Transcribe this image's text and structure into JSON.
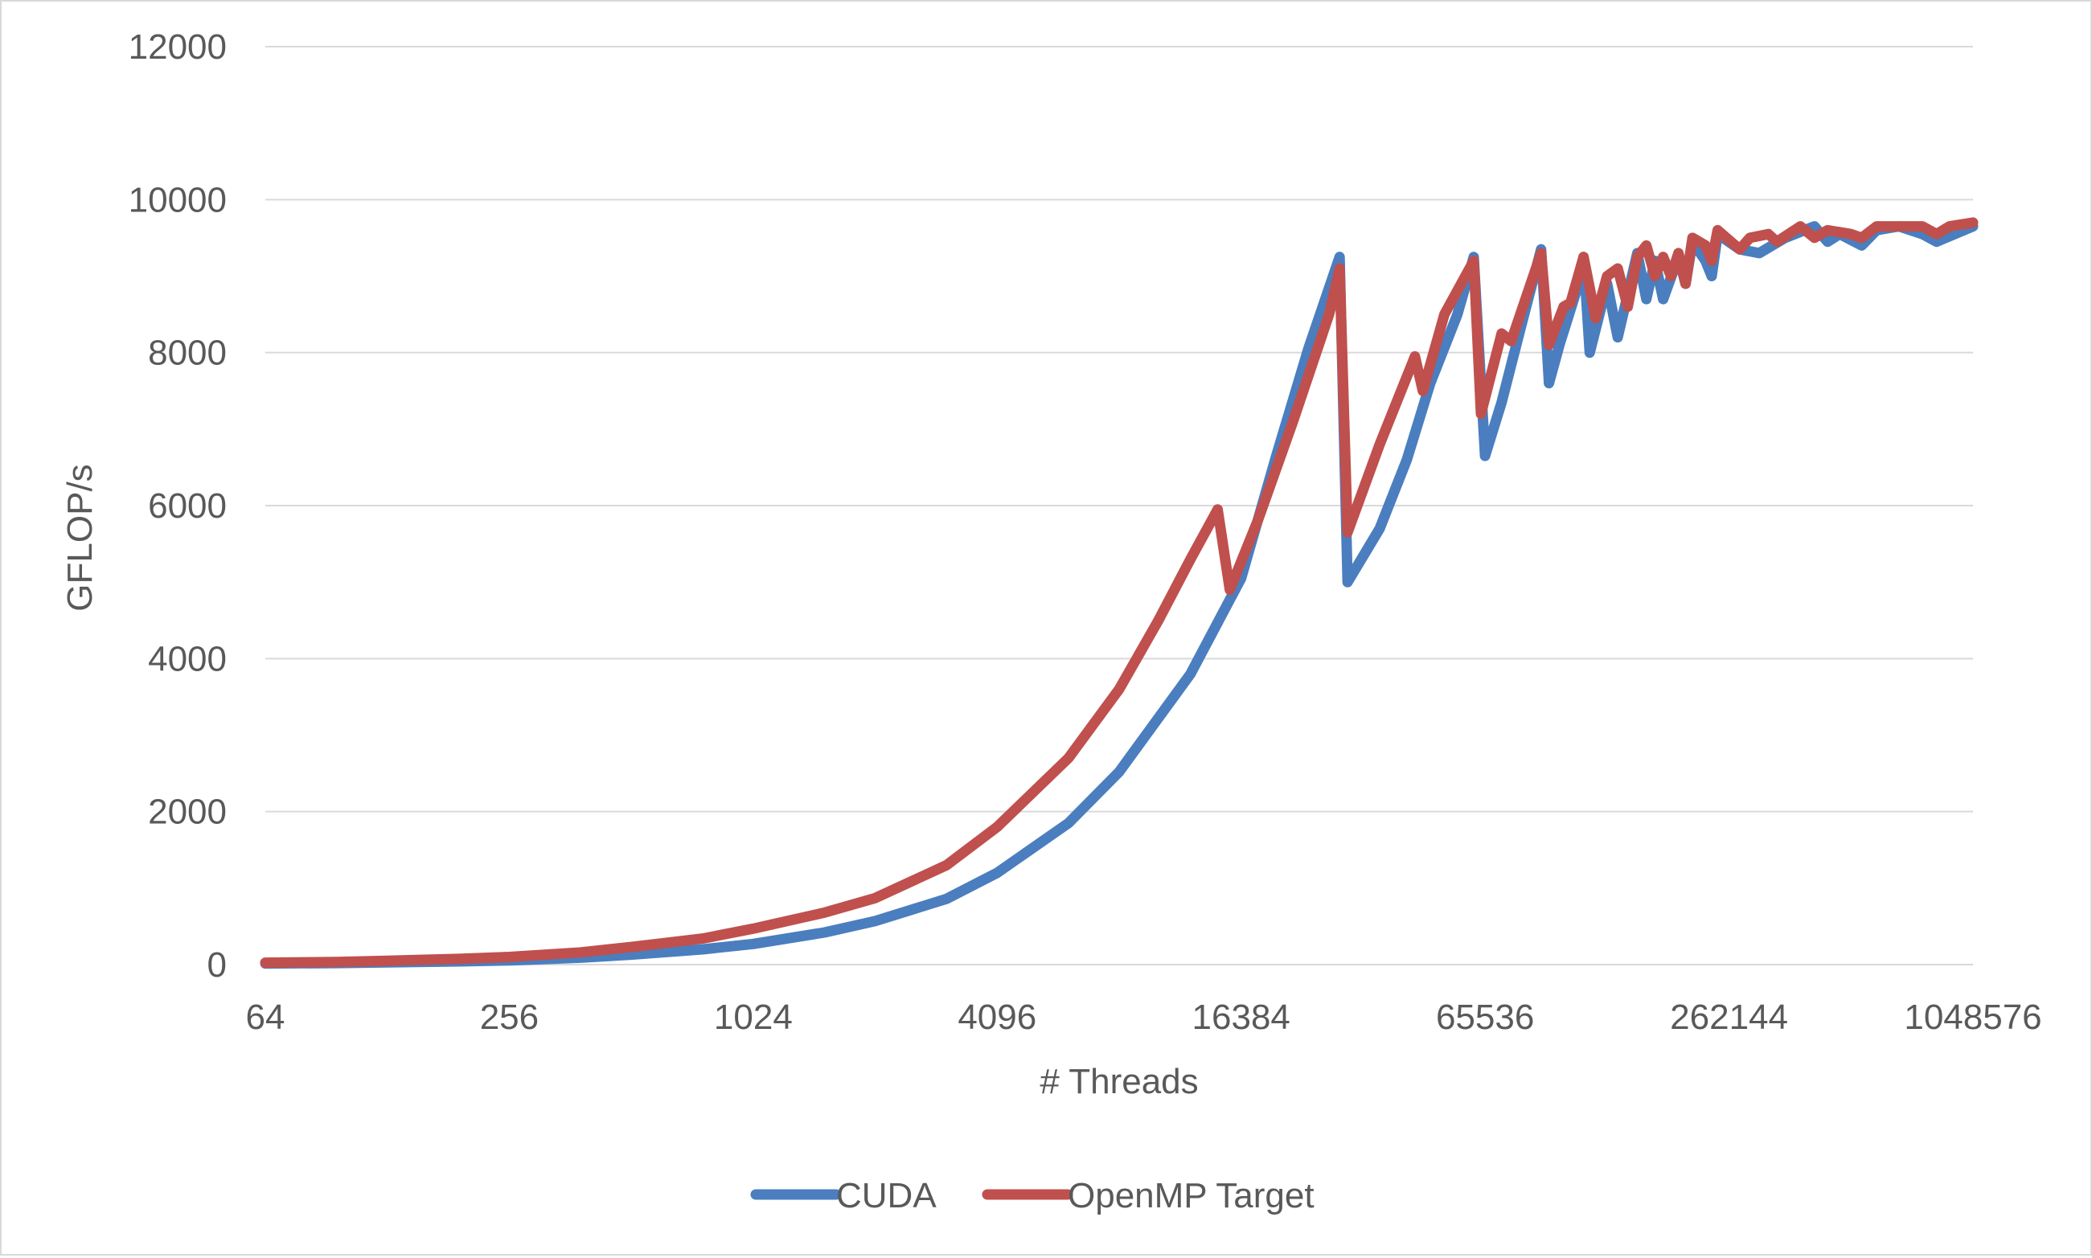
{
  "chart_data": {
    "type": "line",
    "xlabel": "# Threads",
    "ylabel": "GFLOP/s",
    "x_scale": "log2",
    "xlim": [
      64,
      1048576
    ],
    "ylim": [
      0,
      12000
    ],
    "x_ticks": [
      64,
      256,
      1024,
      4096,
      16384,
      65536,
      262144,
      1048576
    ],
    "x_tick_labels": [
      "64",
      "256",
      "1024",
      "4096",
      "16384",
      "65536",
      "262144",
      "1048576"
    ],
    "y_ticks": [
      0,
      2000,
      4000,
      6000,
      8000,
      10000,
      12000
    ],
    "y_tick_labels": [
      "0",
      "2000",
      "4000",
      "6000",
      "8000",
      "10000",
      "12000"
    ],
    "grid": "horizontal",
    "legend_position": "bottom",
    "series": [
      {
        "name": "CUDA",
        "color": "#4a7ebf",
        "points": [
          [
            64,
            15
          ],
          [
            96,
            20
          ],
          [
            128,
            28
          ],
          [
            192,
            42
          ],
          [
            256,
            55
          ],
          [
            384,
            90
          ],
          [
            512,
            130
          ],
          [
            768,
            200
          ],
          [
            1024,
            270
          ],
          [
            1536,
            420
          ],
          [
            2048,
            570
          ],
          [
            3072,
            860
          ],
          [
            4096,
            1200
          ],
          [
            6144,
            1850
          ],
          [
            8192,
            2520
          ],
          [
            12288,
            3800
          ],
          [
            16384,
            5050
          ],
          [
            20000,
            6650
          ],
          [
            24000,
            8050
          ],
          [
            28672,
            9250
          ],
          [
            30000,
            5000
          ],
          [
            36000,
            5700
          ],
          [
            42000,
            6600
          ],
          [
            48000,
            7600
          ],
          [
            56000,
            8500
          ],
          [
            61440,
            9250
          ],
          [
            65536,
            6650
          ],
          [
            72000,
            7350
          ],
          [
            80000,
            8300
          ],
          [
            90112,
            9350
          ],
          [
            94208,
            7600
          ],
          [
            100000,
            8100
          ],
          [
            110000,
            8800
          ],
          [
            114688,
            9250
          ],
          [
            118784,
            8000
          ],
          [
            131072,
            8900
          ],
          [
            139264,
            8200
          ],
          [
            155648,
            9300
          ],
          [
            163840,
            8700
          ],
          [
            172032,
            9200
          ],
          [
            180224,
            8700
          ],
          [
            196608,
            9250
          ],
          [
            204800,
            8900
          ],
          [
            212992,
            9450
          ],
          [
            229376,
            9200
          ],
          [
            237568,
            9000
          ],
          [
            245760,
            9550
          ],
          [
            278528,
            9350
          ],
          [
            311296,
            9300
          ],
          [
            360448,
            9500
          ],
          [
            425984,
            9650
          ],
          [
            458752,
            9450
          ],
          [
            491520,
            9550
          ],
          [
            557056,
            9400
          ],
          [
            606208,
            9600
          ],
          [
            688128,
            9650
          ],
          [
            786432,
            9550
          ],
          [
            851968,
            9450
          ],
          [
            1048576,
            9650
          ]
        ]
      },
      {
        "name": "OpenMP Target",
        "color": "#c0504d",
        "points": [
          [
            64,
            25
          ],
          [
            96,
            35
          ],
          [
            128,
            50
          ],
          [
            192,
            75
          ],
          [
            256,
            100
          ],
          [
            384,
            160
          ],
          [
            512,
            230
          ],
          [
            768,
            340
          ],
          [
            1024,
            470
          ],
          [
            1536,
            680
          ],
          [
            2048,
            870
          ],
          [
            3072,
            1300
          ],
          [
            4096,
            1800
          ],
          [
            6144,
            2700
          ],
          [
            8192,
            3600
          ],
          [
            10240,
            4500
          ],
          [
            12288,
            5300
          ],
          [
            14336,
            5950
          ],
          [
            15360,
            4900
          ],
          [
            18000,
            5800
          ],
          [
            22000,
            7100
          ],
          [
            27000,
            8500
          ],
          [
            28672,
            9100
          ],
          [
            30000,
            5650
          ],
          [
            36000,
            6800
          ],
          [
            44000,
            7950
          ],
          [
            46000,
            7500
          ],
          [
            52000,
            8500
          ],
          [
            61440,
            9200
          ],
          [
            64000,
            7200
          ],
          [
            72000,
            8250
          ],
          [
            76000,
            8150
          ],
          [
            90112,
            9300
          ],
          [
            94208,
            8100
          ],
          [
            102400,
            8600
          ],
          [
            106496,
            8650
          ],
          [
            114688,
            9250
          ],
          [
            122880,
            8450
          ],
          [
            131072,
            9000
          ],
          [
            139264,
            9100
          ],
          [
            147456,
            8600
          ],
          [
            155648,
            9250
          ],
          [
            163840,
            9400
          ],
          [
            172032,
            9000
          ],
          [
            180224,
            9250
          ],
          [
            188416,
            9000
          ],
          [
            196608,
            9300
          ],
          [
            204800,
            8900
          ],
          [
            212992,
            9500
          ],
          [
            229376,
            9400
          ],
          [
            237568,
            9200
          ],
          [
            245760,
            9600
          ],
          [
            278528,
            9350
          ],
          [
            294912,
            9500
          ],
          [
            327680,
            9550
          ],
          [
            344064,
            9450
          ],
          [
            393216,
            9650
          ],
          [
            425984,
            9500
          ],
          [
            458752,
            9600
          ],
          [
            524288,
            9550
          ],
          [
            557056,
            9500
          ],
          [
            606208,
            9650
          ],
          [
            688128,
            9650
          ],
          [
            786432,
            9650
          ],
          [
            851968,
            9550
          ],
          [
            917504,
            9650
          ],
          [
            1048576,
            9700
          ]
        ]
      }
    ]
  }
}
